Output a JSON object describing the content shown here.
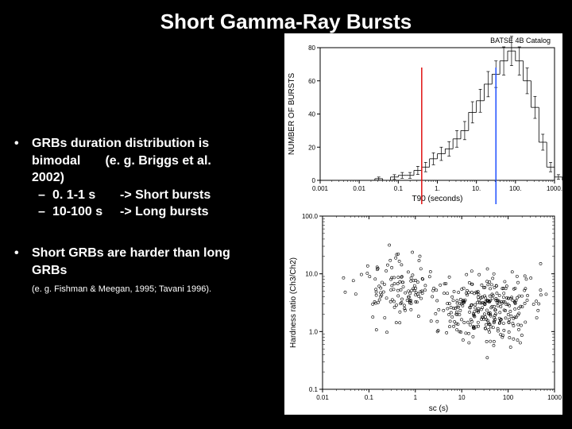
{
  "title": "Short Gamma-Ray Bursts",
  "bullets": {
    "b1": {
      "line1": "GRBs duration distribution is",
      "line2a": "bimodal",
      "line2b": "(e. g. Briggs et al.",
      "line3": "2002)",
      "sub1a": "0. 1-1 s",
      "sub1b": "-> Short bursts",
      "sub2a": "10-100 s",
      "sub2b": "-> Long bursts"
    },
    "b2": {
      "line1": "Short GRBs are harder than long",
      "line2": "GRBs"
    },
    "ref": "(e. g. Fishman & Meegan, 1995; Tavani 1996)."
  },
  "chart1": {
    "title": "BATSE 4B Catalog",
    "ylabel": "NUMBER OF BURSTS",
    "xlabel": "T90 (seconds)",
    "xticks": [
      "0.001",
      "0.01",
      "0.1",
      "1.",
      "10.",
      "100.",
      "1000."
    ],
    "yticks": [
      "0",
      "20",
      "40",
      "60",
      "80"
    ],
    "arrow_colors": {
      "short": "#e01010",
      "long": "#2050ff"
    },
    "bg": "#ffffff",
    "axis_color": "#000000",
    "bins_start": 0.01,
    "bins_per_decade": 5,
    "counts": [
      0,
      0,
      1,
      0,
      2,
      3,
      3,
      6,
      8,
      13,
      16,
      19,
      25,
      30,
      41,
      48,
      58,
      64,
      72,
      78,
      72,
      60,
      44,
      23,
      8,
      2
    ]
  },
  "chart2": {
    "ylabel": "Hardness ratio (Ch3/Ch2)",
    "xlabel": "sc (s)",
    "xticks": [
      "0.01",
      "0.1",
      "1",
      "10",
      "100",
      "1000"
    ],
    "yticks": [
      "0.1",
      "1.0",
      "10.0",
      "100.0"
    ],
    "bg": "#ffffff",
    "axis_color": "#000000",
    "point_color": "#000000",
    "n_points": 420,
    "clusters": [
      {
        "cx_log": -0.4,
        "cy_log": 0.75,
        "sx": 0.45,
        "sy": 0.3,
        "w": 0.3
      },
      {
        "cx_log": 1.5,
        "cy_log": 0.4,
        "sx": 0.55,
        "sy": 0.3,
        "w": 0.7
      }
    ]
  }
}
